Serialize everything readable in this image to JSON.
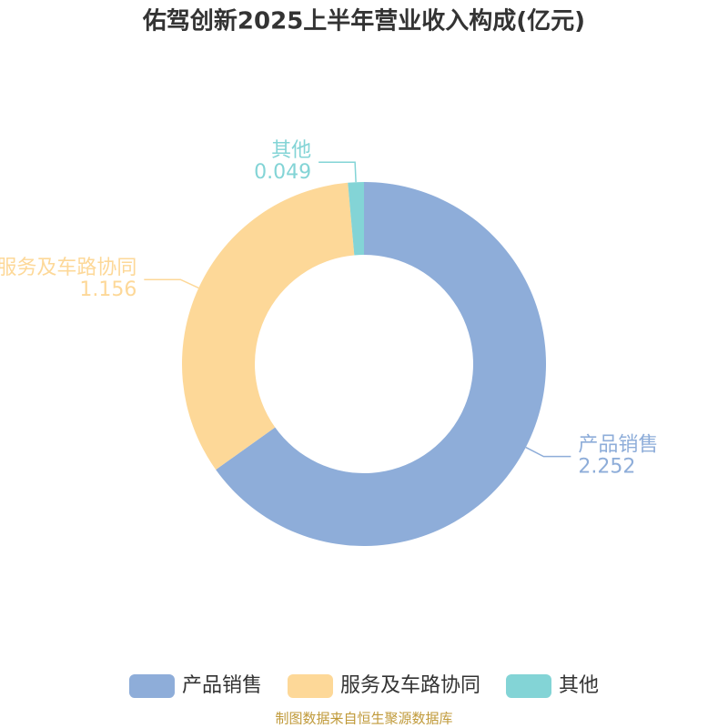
{
  "chart_data": {
    "type": "donut",
    "title": "佑驾创新2025上半年营业收入构成(亿元)",
    "categories": [
      "产品销售",
      "服务及车路协同",
      "其他"
    ],
    "values": [
      2.252,
      1.156,
      0.049
    ],
    "colors": [
      "#8eadd9",
      "#fdd898",
      "#83d4d6"
    ],
    "source": "制图数据来自恒生聚源数据库"
  }
}
